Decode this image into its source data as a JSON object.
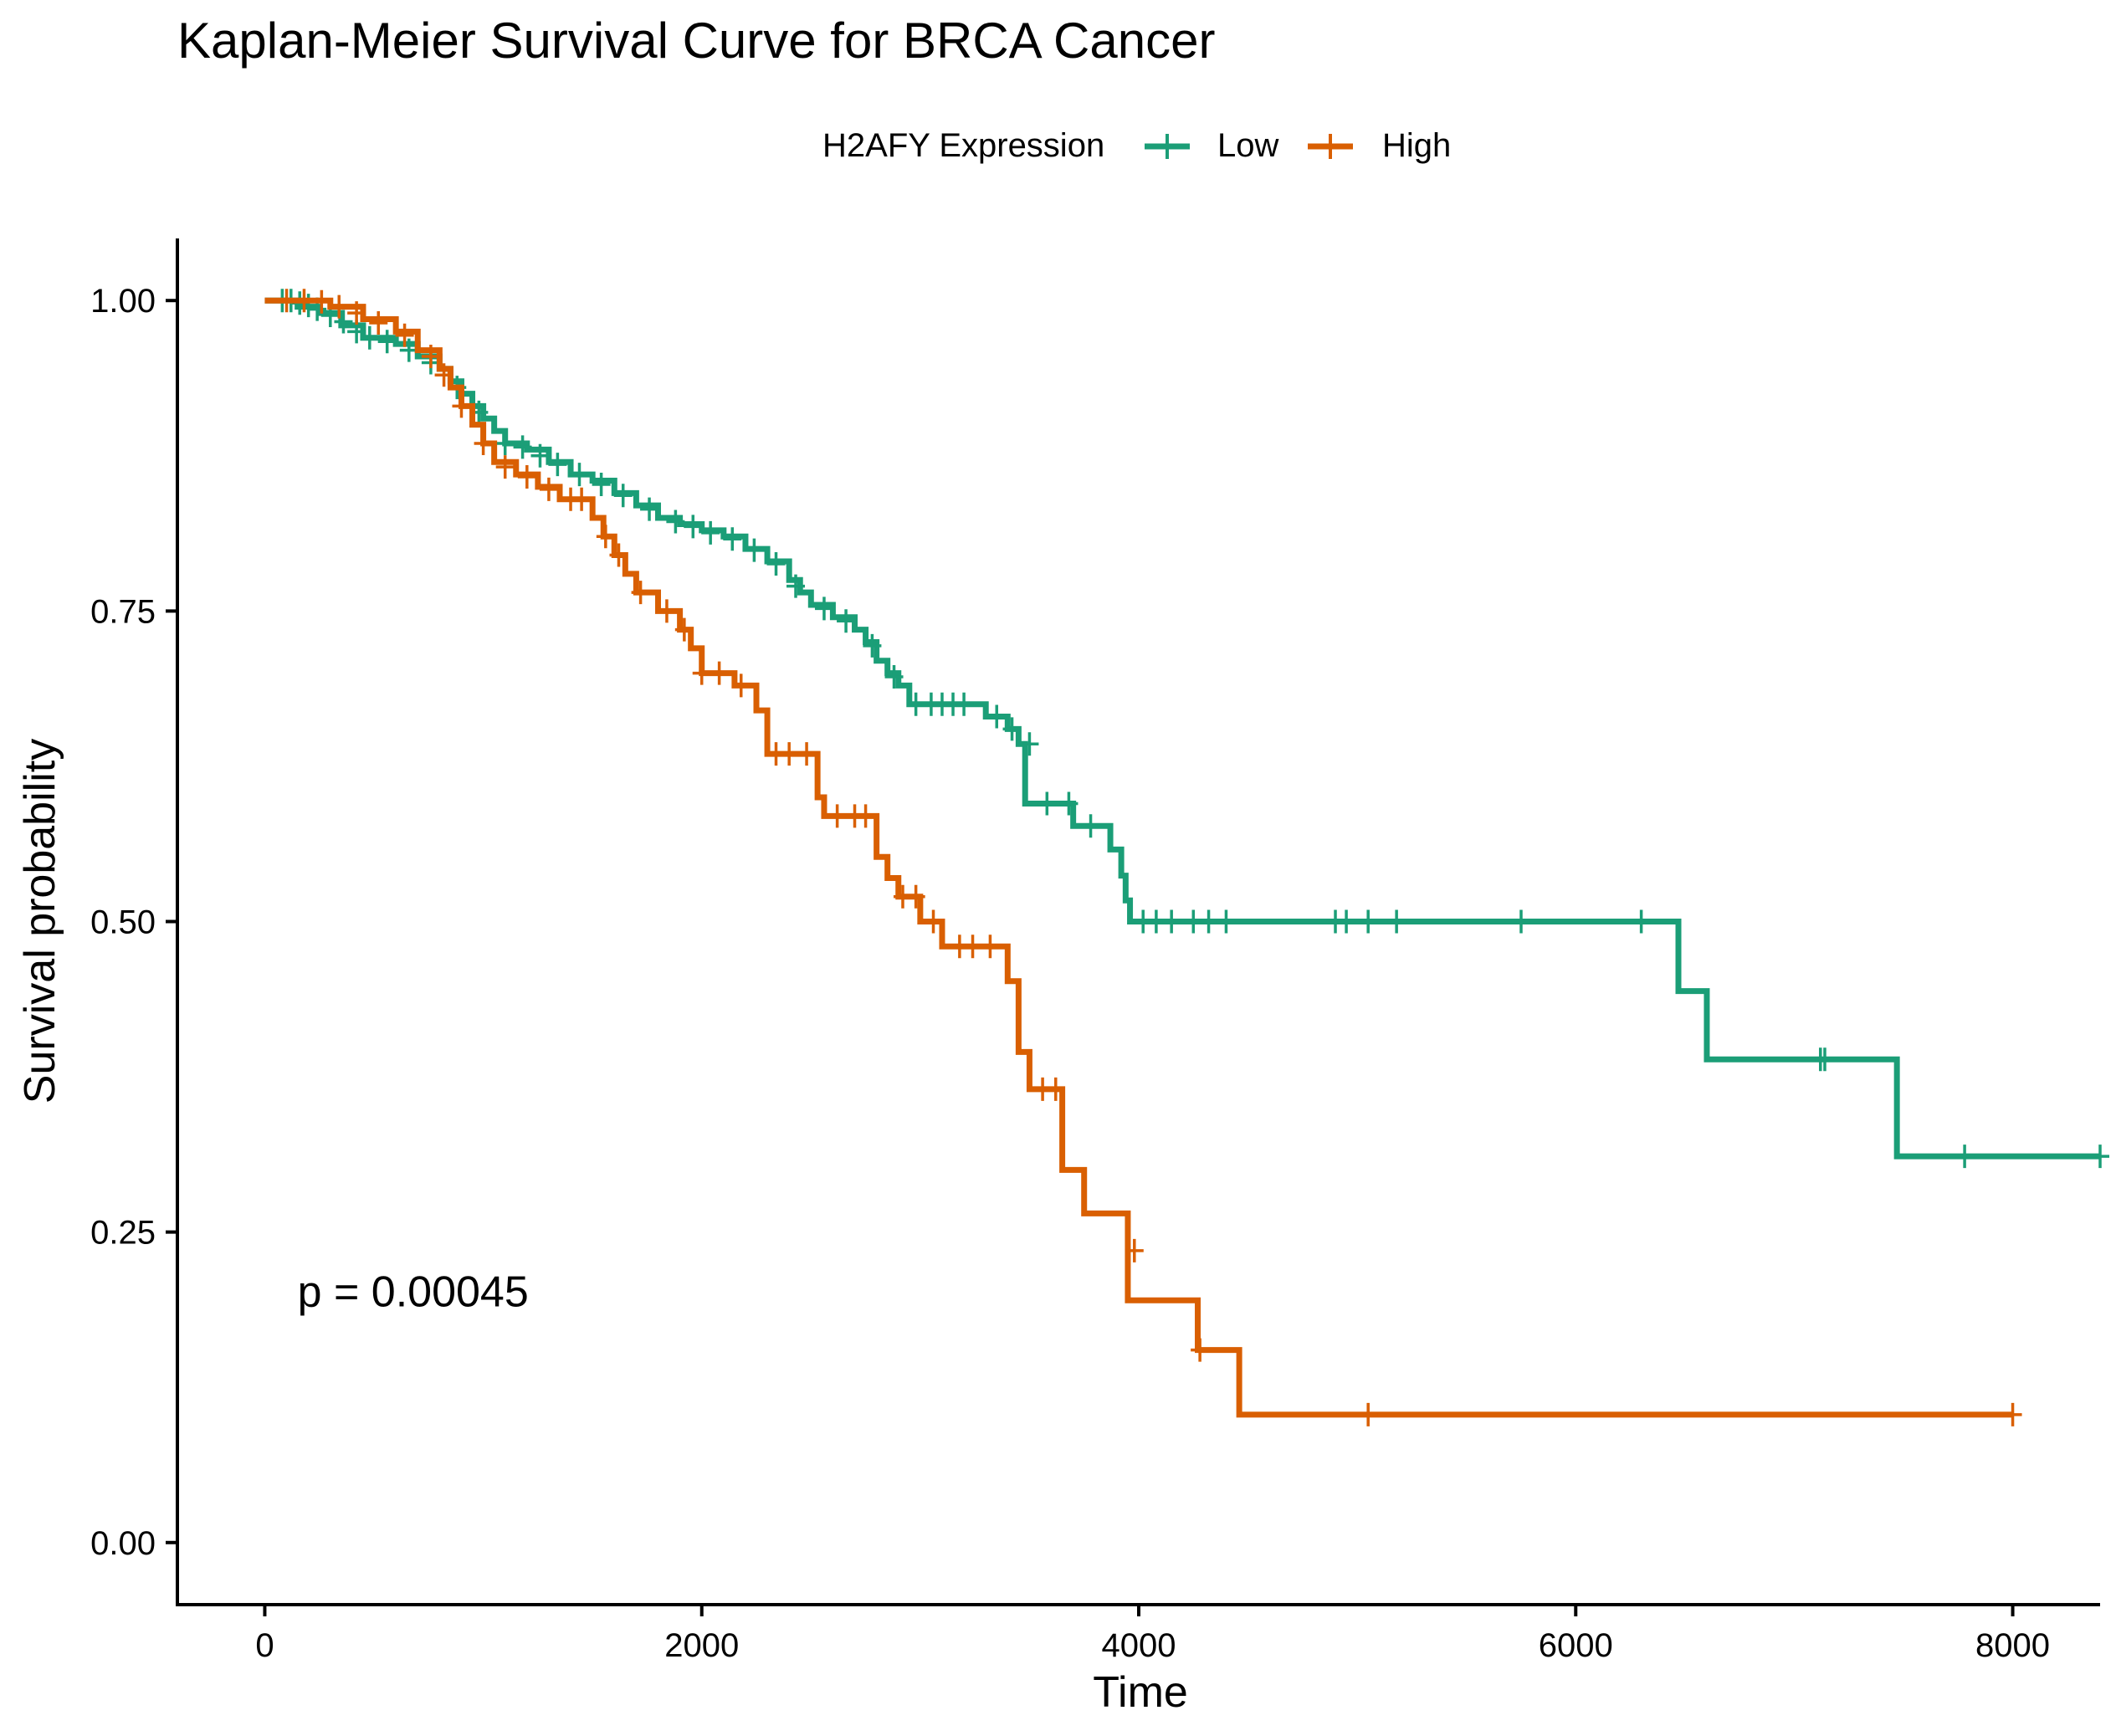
{
  "chart_data": {
    "type": "line",
    "title": "Kaplan-Meier Survival Curve for BRCA Cancer",
    "xlabel": "Time",
    "ylabel": "Survival probability",
    "xlim": [
      -400,
      8400
    ],
    "ylim": [
      -0.05,
      1.05
    ],
    "x_ticks": [
      0,
      2000,
      4000,
      6000,
      8000
    ],
    "x_tick_labels": [
      "0",
      "2000",
      "4000",
      "6000",
      "8000"
    ],
    "y_ticks": [
      0,
      0.25,
      0.5,
      0.75,
      1.0
    ],
    "y_tick_labels": [
      "0.00",
      "0.25",
      "0.50",
      "0.75",
      "1.00"
    ],
    "legend": {
      "title": "H2AFY Expression",
      "position": "top",
      "entries": [
        "Low",
        "High"
      ]
    },
    "annotation": {
      "text": "p = 0.00045",
      "x": 150,
      "y": 0.19
    },
    "grid": false,
    "series": [
      {
        "name": "Low",
        "color": "#1B9E77",
        "steps": [
          [
            0,
            1.0
          ],
          [
            150,
            0.995
          ],
          [
            250,
            0.99
          ],
          [
            350,
            0.98
          ],
          [
            450,
            0.97
          ],
          [
            600,
            0.965
          ],
          [
            700,
            0.955
          ],
          [
            800,
            0.945
          ],
          [
            850,
            0.935
          ],
          [
            900,
            0.925
          ],
          [
            950,
            0.915
          ],
          [
            1000,
            0.905
          ],
          [
            1050,
            0.895
          ],
          [
            1100,
            0.885
          ],
          [
            1200,
            0.88
          ],
          [
            1300,
            0.87
          ],
          [
            1400,
            0.86
          ],
          [
            1500,
            0.855
          ],
          [
            1600,
            0.845
          ],
          [
            1700,
            0.835
          ],
          [
            1800,
            0.825
          ],
          [
            1900,
            0.82
          ],
          [
            2000,
            0.815
          ],
          [
            2100,
            0.81
          ],
          [
            2200,
            0.8
          ],
          [
            2300,
            0.79
          ],
          [
            2400,
            0.775
          ],
          [
            2450,
            0.765
          ],
          [
            2500,
            0.755
          ],
          [
            2600,
            0.745
          ],
          [
            2700,
            0.735
          ],
          [
            2750,
            0.725
          ],
          [
            2800,
            0.71
          ],
          [
            2850,
            0.7
          ],
          [
            2900,
            0.69
          ],
          [
            2950,
            0.675
          ],
          [
            3300,
            0.665
          ],
          [
            3400,
            0.655
          ],
          [
            3450,
            0.643
          ],
          [
            3480,
            0.595
          ],
          [
            3700,
            0.577
          ],
          [
            3870,
            0.558
          ],
          [
            3920,
            0.537
          ],
          [
            3940,
            0.517
          ],
          [
            3960,
            0.5
          ],
          [
            6470,
            0.444
          ],
          [
            6600,
            0.389
          ],
          [
            7470,
            0.311
          ],
          [
            8400,
            0.311
          ]
        ],
        "censors": [
          [
            80,
            1.0
          ],
          [
            120,
            1.0
          ],
          [
            160,
            0.998
          ],
          [
            200,
            0.996
          ],
          [
            240,
            0.993
          ],
          [
            300,
            0.988
          ],
          [
            360,
            0.983
          ],
          [
            420,
            0.975
          ],
          [
            480,
            0.97
          ],
          [
            560,
            0.967
          ],
          [
            660,
            0.96
          ],
          [
            760,
            0.95
          ],
          [
            880,
            0.93
          ],
          [
            980,
            0.91
          ],
          [
            1100,
            0.885
          ],
          [
            1180,
            0.882
          ],
          [
            1260,
            0.875
          ],
          [
            1340,
            0.868
          ],
          [
            1440,
            0.86
          ],
          [
            1540,
            0.852
          ],
          [
            1640,
            0.843
          ],
          [
            1760,
            0.832
          ],
          [
            1880,
            0.822
          ],
          [
            1960,
            0.818
          ],
          [
            2040,
            0.813
          ],
          [
            2140,
            0.808
          ],
          [
            2240,
            0.799
          ],
          [
            2340,
            0.788
          ],
          [
            2430,
            0.77
          ],
          [
            2560,
            0.752
          ],
          [
            2660,
            0.742
          ],
          [
            2780,
            0.722
          ],
          [
            2880,
            0.697
          ],
          [
            2980,
            0.675
          ],
          [
            3050,
            0.675
          ],
          [
            3100,
            0.675
          ],
          [
            3150,
            0.675
          ],
          [
            3200,
            0.675
          ],
          [
            3350,
            0.665
          ],
          [
            3420,
            0.655
          ],
          [
            3500,
            0.643
          ],
          [
            3580,
            0.595
          ],
          [
            3680,
            0.595
          ],
          [
            3780,
            0.577
          ],
          [
            4020,
            0.5
          ],
          [
            4080,
            0.5
          ],
          [
            4150,
            0.5
          ],
          [
            4250,
            0.5
          ],
          [
            4320,
            0.5
          ],
          [
            4400,
            0.5
          ],
          [
            4900,
            0.5
          ],
          [
            4950,
            0.5
          ],
          [
            5050,
            0.5
          ],
          [
            5180,
            0.5
          ],
          [
            5750,
            0.5
          ],
          [
            6300,
            0.5
          ],
          [
            7120,
            0.389
          ],
          [
            7140,
            0.389
          ],
          [
            7780,
            0.311
          ],
          [
            8400,
            0.311
          ]
        ]
      },
      {
        "name": "High",
        "color": "#D95F02",
        "steps": [
          [
            0,
            1.0
          ],
          [
            300,
            0.995
          ],
          [
            450,
            0.985
          ],
          [
            600,
            0.975
          ],
          [
            700,
            0.96
          ],
          [
            800,
            0.945
          ],
          [
            850,
            0.93
          ],
          [
            900,
            0.915
          ],
          [
            950,
            0.9
          ],
          [
            1000,
            0.885
          ],
          [
            1050,
            0.87
          ],
          [
            1150,
            0.86
          ],
          [
            1250,
            0.85
          ],
          [
            1350,
            0.84
          ],
          [
            1500,
            0.825
          ],
          [
            1550,
            0.81
          ],
          [
            1600,
            0.795
          ],
          [
            1650,
            0.78
          ],
          [
            1700,
            0.765
          ],
          [
            1800,
            0.75
          ],
          [
            1900,
            0.735
          ],
          [
            1950,
            0.72
          ],
          [
            2000,
            0.7
          ],
          [
            2150,
            0.69
          ],
          [
            2250,
            0.67
          ],
          [
            2300,
            0.635
          ],
          [
            2530,
            0.6
          ],
          [
            2560,
            0.585
          ],
          [
            2800,
            0.552
          ],
          [
            2850,
            0.535
          ],
          [
            2900,
            0.52
          ],
          [
            3000,
            0.5
          ],
          [
            3100,
            0.48
          ],
          [
            3400,
            0.452
          ],
          [
            3450,
            0.395
          ],
          [
            3500,
            0.365
          ],
          [
            3650,
            0.3
          ],
          [
            3750,
            0.265
          ],
          [
            3950,
            0.195
          ],
          [
            4270,
            0.155
          ],
          [
            4460,
            0.103
          ],
          [
            8000,
            0.103
          ]
        ],
        "censors": [
          [
            100,
            1.0
          ],
          [
            180,
            1.0
          ],
          [
            260,
            0.999
          ],
          [
            340,
            0.995
          ],
          [
            420,
            0.99
          ],
          [
            520,
            0.982
          ],
          [
            640,
            0.972
          ],
          [
            760,
            0.955
          ],
          [
            820,
            0.94
          ],
          [
            900,
            0.915
          ],
          [
            1000,
            0.885
          ],
          [
            1100,
            0.866
          ],
          [
            1200,
            0.858
          ],
          [
            1300,
            0.848
          ],
          [
            1400,
            0.84
          ],
          [
            1450,
            0.84
          ],
          [
            1560,
            0.81
          ],
          [
            1620,
            0.795
          ],
          [
            1720,
            0.765
          ],
          [
            1840,
            0.75
          ],
          [
            1920,
            0.735
          ],
          [
            2000,
            0.7
          ],
          [
            2080,
            0.7
          ],
          [
            2180,
            0.69
          ],
          [
            2340,
            0.635
          ],
          [
            2400,
            0.635
          ],
          [
            2480,
            0.635
          ],
          [
            2620,
            0.585
          ],
          [
            2700,
            0.585
          ],
          [
            2750,
            0.585
          ],
          [
            2920,
            0.52
          ],
          [
            2980,
            0.52
          ],
          [
            3060,
            0.5
          ],
          [
            3180,
            0.48
          ],
          [
            3240,
            0.48
          ],
          [
            3320,
            0.48
          ],
          [
            3560,
            0.365
          ],
          [
            3620,
            0.365
          ],
          [
            3980,
            0.235
          ],
          [
            4280,
            0.155
          ],
          [
            5050,
            0.103
          ],
          [
            8000,
            0.103
          ]
        ]
      }
    ]
  }
}
